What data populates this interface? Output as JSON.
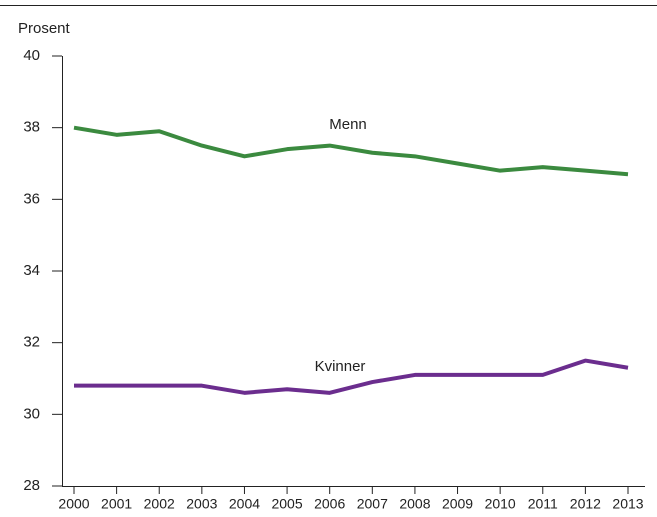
{
  "chart_data": {
    "type": "line",
    "y_label": "Prosent",
    "categories": [
      "2000",
      "2001",
      "2002",
      "2003",
      "2004",
      "2005",
      "2006",
      "2007",
      "2008",
      "2009",
      "2010",
      "2011",
      "2012",
      "2013"
    ],
    "series": [
      {
        "name": "Menn",
        "color": "#3b8a3f",
        "values": [
          38.0,
          37.8,
          37.9,
          37.5,
          37.2,
          37.4,
          37.5,
          37.3,
          37.2,
          37.0,
          36.8,
          36.9,
          36.8,
          36.7
        ]
      },
      {
        "name": "Kvinner",
        "color": "#6b2d8e",
        "values": [
          30.8,
          30.8,
          30.8,
          30.8,
          30.6,
          30.7,
          30.6,
          30.9,
          31.1,
          31.1,
          31.1,
          31.1,
          31.5,
          31.3
        ]
      }
    ],
    "ylim": [
      28,
      40
    ],
    "yticks": [
      28,
      30,
      32,
      34,
      36,
      38,
      40
    ],
    "grid": false
  }
}
